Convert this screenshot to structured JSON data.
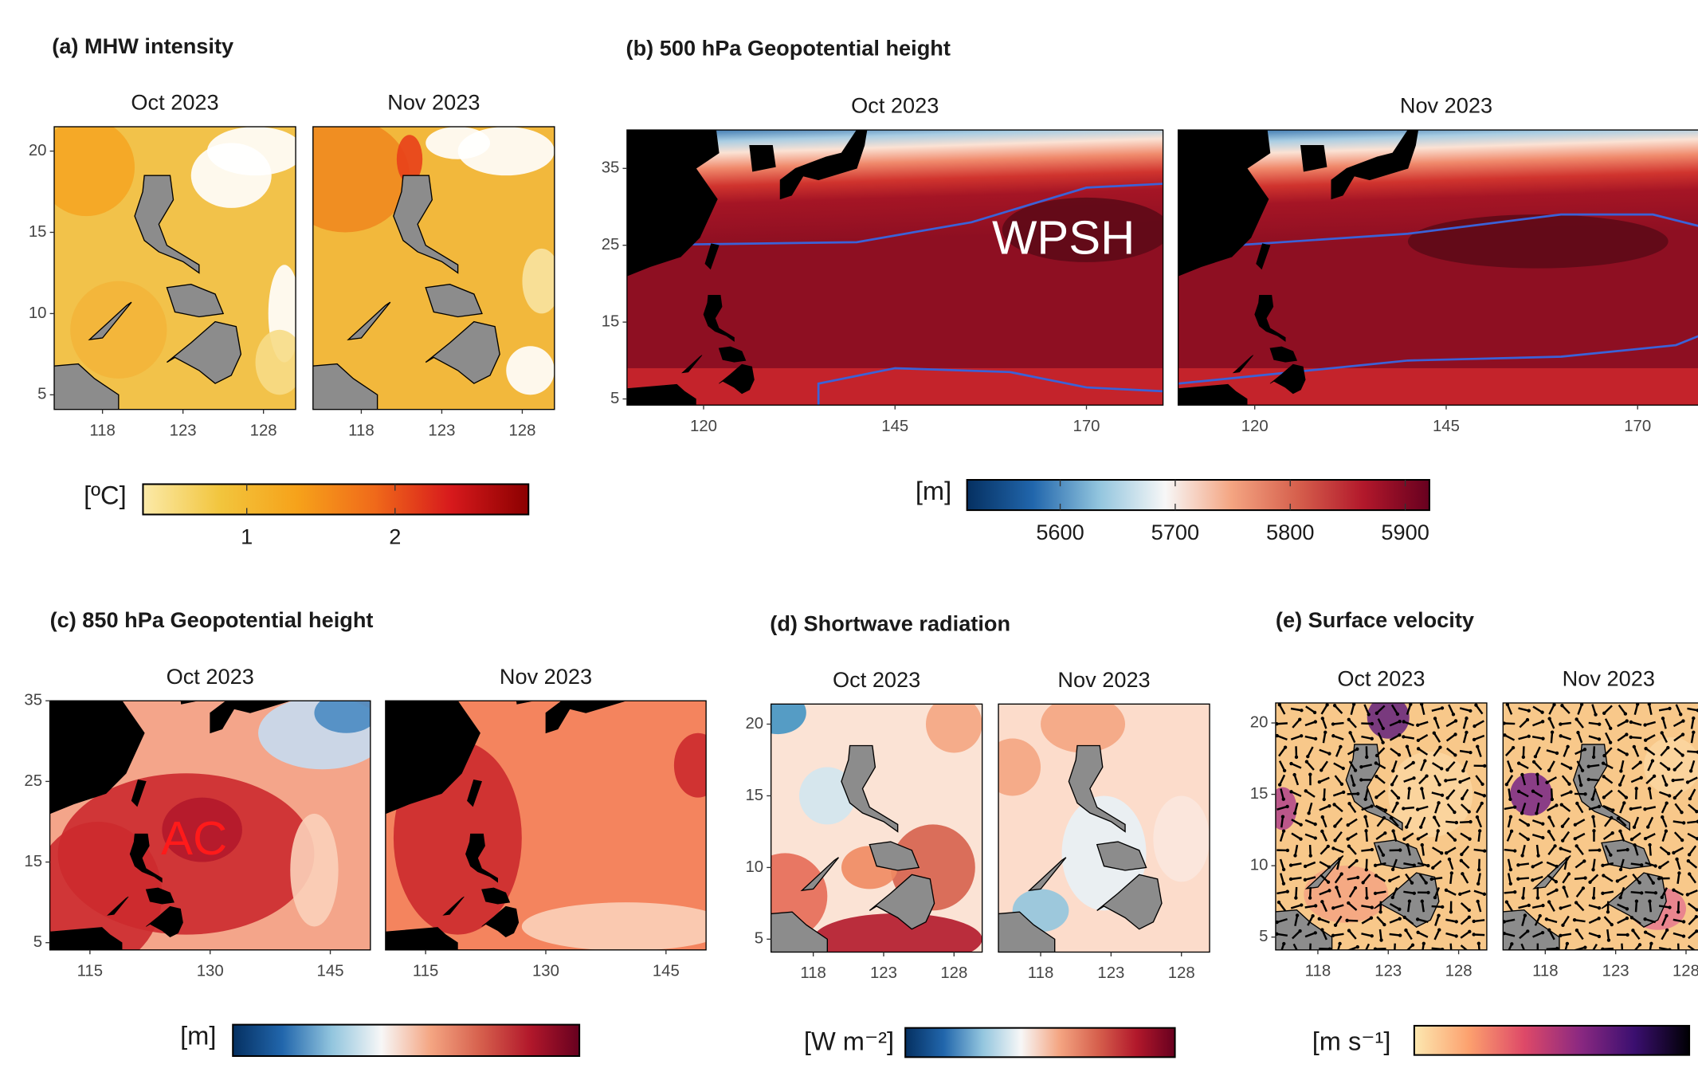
{
  "panels": [
    {
      "title": "(a) MHW intensity",
      "maps": [
        {
          "title": "Oct 2023"
        },
        {
          "title": "Nov 2023"
        }
      ],
      "xlim": [
        115,
        130
      ],
      "ylim": [
        4.1,
        21.5
      ],
      "xticks": [
        118,
        123,
        128
      ],
      "yticks": [
        5,
        10,
        15,
        20
      ],
      "colorbar": {
        "label": "[ºC]",
        "lim": [
          0.3,
          2.9
        ],
        "ticks": [
          1,
          2
        ],
        "colors": [
          "#fbeaa9",
          "#f2c53d",
          "#f6a21a",
          "#f06a1a",
          "#d7191c",
          "#8b0000"
        ]
      }
    },
    {
      "title": "(b) 500 hPa Geopotential height",
      "maps": [
        {
          "title": "Oct 2023"
        },
        {
          "title": "Nov 2023"
        }
      ],
      "xlim": [
        110,
        180
      ],
      "ylim": [
        4.2,
        40
      ],
      "xticks": [
        120,
        145,
        170
      ],
      "yticks": [
        5,
        15,
        25,
        35
      ],
      "annotation": "WPSH",
      "colorbar": {
        "label": "[m]",
        "lim": [
          5519,
          5921
        ],
        "ticks": [
          5600,
          5700,
          5800,
          5900
        ],
        "colors": [
          "#053061",
          "#2166ac",
          "#92c5de",
          "#f7f7f7",
          "#f4a582",
          "#d6604d",
          "#b2182b",
          "#67001f"
        ]
      }
    },
    {
      "title": "(c) 850 hPa Geopotential height",
      "maps": [
        {
          "title": "Oct 2023"
        },
        {
          "title": "Nov 2023"
        }
      ],
      "xlim": [
        110,
        150
      ],
      "ylim": [
        4.1,
        35
      ],
      "xticks": [
        115,
        130,
        145
      ],
      "yticks": [
        5,
        15,
        25,
        35
      ],
      "annotation": "AC",
      "colorbar": {
        "label": "[m]",
        "colors": [
          "#053061",
          "#2166ac",
          "#92c5de",
          "#f7f7f7",
          "#f4a582",
          "#d6604d",
          "#b2182b",
          "#67001f"
        ]
      }
    },
    {
      "title": "(d) Shortwave radiation",
      "maps": [
        {
          "title": "Oct 2023"
        },
        {
          "title": "Nov 2023"
        }
      ],
      "xlim": [
        115,
        130
      ],
      "ylim": [
        4.1,
        21.4
      ],
      "xticks": [
        118,
        123,
        128
      ],
      "yticks": [
        5,
        10,
        15,
        20
      ],
      "colorbar": {
        "label": "[W m⁻²]",
        "colors": [
          "#053061",
          "#2166ac",
          "#92c5de",
          "#f7f7f7",
          "#f4a582",
          "#d6604d",
          "#b2182b",
          "#67001f"
        ]
      }
    },
    {
      "title": "(e) Surface velocity",
      "maps": [
        {
          "title": "Oct 2023"
        },
        {
          "title": "Nov 2023"
        }
      ],
      "xlim": [
        115,
        130
      ],
      "ylim": [
        4.1,
        21.4
      ],
      "xticks": [
        118,
        123,
        128
      ],
      "yticks": [
        5,
        10,
        15,
        20
      ],
      "colorbar": {
        "label": "[m s⁻¹]",
        "colors": [
          "#fce8b0",
          "#fca06e",
          "#de4968",
          "#8c2981",
          "#3b0f70",
          "#000004"
        ]
      }
    }
  ]
}
